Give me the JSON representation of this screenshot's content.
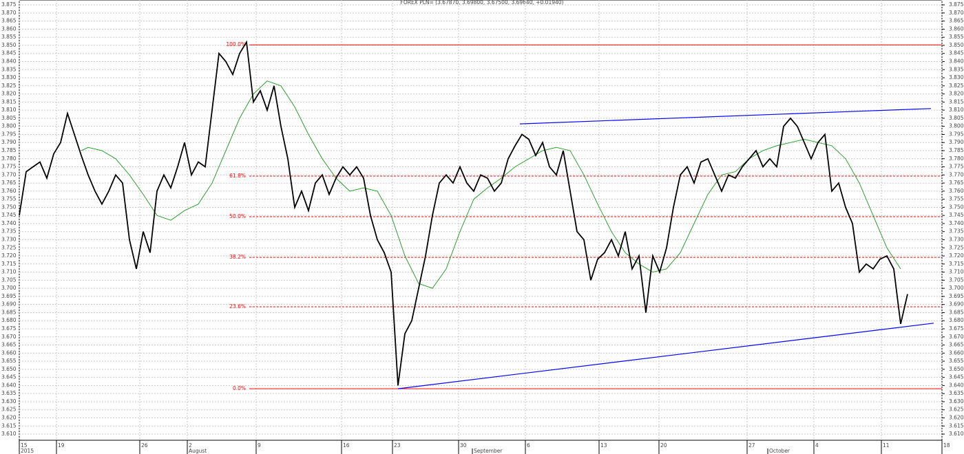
{
  "chart_data": {
    "type": "line",
    "title": "FOREX PLN= (3.67870, 3.69800, 3.67500, 3.69640, +0.01940)",
    "xlim": [
      0,
      134
    ],
    "xticks": [
      {
        "value": 0,
        "label": "15"
      },
      {
        "value": 5.4,
        "label": "19"
      },
      {
        "value": 17.5,
        "label": "26"
      },
      {
        "value": 24.4,
        "label": "2"
      },
      {
        "value": 34.4,
        "label": "9"
      },
      {
        "value": 46.8,
        "label": "16"
      },
      {
        "value": 54.2,
        "label": "23"
      },
      {
        "value": 63.8,
        "label": "30"
      },
      {
        "value": 73.5,
        "label": "6"
      },
      {
        "value": 84.2,
        "label": "13"
      },
      {
        "value": 92.9,
        "label": "20"
      },
      {
        "value": 105.7,
        "label": "27"
      },
      {
        "value": 115.4,
        "label": "4"
      },
      {
        "value": 125.2,
        "label": "11"
      },
      {
        "value": 134,
        "label": "18"
      }
    ],
    "month_ticks": [
      {
        "value": 0,
        "label": "2015"
      },
      {
        "value": 24.4,
        "label": "August"
      },
      {
        "value": 65.8,
        "label": "September"
      },
      {
        "value": 108.7,
        "label": "October"
      }
    ],
    "ylim": [
      3.6062,
      3.878
    ],
    "yticks": [
      {
        "value": 3.61,
        "label": "3.610"
      },
      {
        "value": 3.615,
        "label": "3.615"
      },
      {
        "value": 3.62,
        "label": "3.620"
      },
      {
        "value": 3.625,
        "label": "3.625"
      },
      {
        "value": 3.63,
        "label": "3.630"
      },
      {
        "value": 3.635,
        "label": "3.635"
      },
      {
        "value": 3.64,
        "label": "3.640"
      },
      {
        "value": 3.645,
        "label": "3.645"
      },
      {
        "value": 3.65,
        "label": "3.650"
      },
      {
        "value": 3.655,
        "label": "3.655"
      },
      {
        "value": 3.66,
        "label": "3.660"
      },
      {
        "value": 3.665,
        "label": "3.665"
      },
      {
        "value": 3.67,
        "label": "3.670"
      },
      {
        "value": 3.675,
        "label": "3.675"
      },
      {
        "value": 3.68,
        "label": "3.680"
      },
      {
        "value": 3.685,
        "label": "3.685"
      },
      {
        "value": 3.69,
        "label": "3.690"
      },
      {
        "value": 3.695,
        "label": "3.695"
      },
      {
        "value": 3.7,
        "label": "3.700"
      },
      {
        "value": 3.705,
        "label": "3.705"
      },
      {
        "value": 3.71,
        "label": "3.710"
      },
      {
        "value": 3.715,
        "label": "3.715"
      },
      {
        "value": 3.72,
        "label": "3.720"
      },
      {
        "value": 3.725,
        "label": "3.725"
      },
      {
        "value": 3.73,
        "label": "3.730"
      },
      {
        "value": 3.735,
        "label": "3.735"
      },
      {
        "value": 3.74,
        "label": "3.740"
      },
      {
        "value": 3.745,
        "label": "3.745"
      },
      {
        "value": 3.75,
        "label": "3.750"
      },
      {
        "value": 3.755,
        "label": "3.755"
      },
      {
        "value": 3.76,
        "label": "3.760"
      },
      {
        "value": 3.765,
        "label": "3.765"
      },
      {
        "value": 3.77,
        "label": "3.770"
      },
      {
        "value": 3.775,
        "label": "3.775"
      },
      {
        "value": 3.78,
        "label": "3.780"
      },
      {
        "value": 3.785,
        "label": "3.785"
      },
      {
        "value": 3.79,
        "label": "3.790"
      },
      {
        "value": 3.795,
        "label": "3.795"
      },
      {
        "value": 3.8,
        "label": "3.800"
      },
      {
        "value": 3.805,
        "label": "3.805"
      },
      {
        "value": 3.81,
        "label": "3.810"
      },
      {
        "value": 3.815,
        "label": "3.815"
      },
      {
        "value": 3.82,
        "label": "3.820"
      },
      {
        "value": 3.825,
        "label": "3.825"
      },
      {
        "value": 3.83,
        "label": "3.830"
      },
      {
        "value": 3.835,
        "label": "3.835"
      },
      {
        "value": 3.84,
        "label": "3.840"
      },
      {
        "value": 3.845,
        "label": "3.845"
      },
      {
        "value": 3.85,
        "label": "3.850"
      },
      {
        "value": 3.855,
        "label": "3.855"
      },
      {
        "value": 3.86,
        "label": "3.860"
      },
      {
        "value": 3.865,
        "label": "3.865"
      },
      {
        "value": 3.87,
        "label": "3.870"
      },
      {
        "value": 3.875,
        "label": "3.875"
      }
    ],
    "grid": true,
    "series": [
      {
        "name": "PLN=",
        "color": "#000000",
        "values": [
          3.745,
          3.772,
          3.775,
          3.778,
          3.768,
          3.783,
          3.79,
          3.808,
          3.795,
          3.782,
          3.77,
          3.76,
          3.752,
          3.76,
          3.77,
          3.765,
          3.73,
          3.712,
          3.735,
          3.722,
          3.76,
          3.77,
          3.762,
          3.775,
          3.79,
          3.77,
          3.778,
          3.775,
          3.81,
          3.845,
          3.84,
          3.832,
          3.845,
          3.852,
          3.815,
          3.822,
          3.81,
          3.825,
          3.8,
          3.78,
          3.75,
          3.76,
          3.748,
          3.765,
          3.77,
          3.758,
          3.768,
          3.775,
          3.77,
          3.775,
          3.768,
          3.745,
          3.73,
          3.722,
          3.71,
          3.64,
          3.672,
          3.68,
          3.7,
          3.72,
          3.745,
          3.765,
          3.77,
          3.765,
          3.775,
          3.765,
          3.76,
          3.77,
          3.768,
          3.76,
          3.765,
          3.78,
          3.788,
          3.795,
          3.792,
          3.782,
          3.79,
          3.775,
          3.77,
          3.785,
          3.76,
          3.735,
          3.73,
          3.705,
          3.718,
          3.722,
          3.73,
          3.72,
          3.735,
          3.712,
          3.72,
          3.685,
          3.72,
          3.71,
          3.725,
          3.75,
          3.77,
          3.775,
          3.765,
          3.778,
          3.78,
          3.77,
          3.76,
          3.77,
          3.768,
          3.775,
          3.78,
          3.785,
          3.775,
          3.78,
          3.775,
          3.8,
          3.805,
          3.8,
          3.79,
          3.78,
          3.79,
          3.795,
          3.76,
          3.765,
          3.75,
          3.74,
          3.71,
          3.715,
          3.712,
          3.718,
          3.72,
          3.712,
          3.678,
          3.6964
        ]
      },
      {
        "name": "MA",
        "color": "#2ca02c",
        "x": [
          9,
          10,
          12,
          14,
          16,
          18,
          20,
          22,
          24,
          26,
          28,
          30,
          32,
          34,
          36,
          38,
          40,
          42,
          44,
          46,
          48,
          50,
          52,
          54,
          56,
          58,
          60,
          62,
          64,
          66,
          68,
          70,
          72,
          74,
          76,
          78,
          80,
          82,
          84,
          86,
          88,
          90,
          92,
          94,
          96,
          98,
          100,
          102,
          104,
          106,
          108,
          110,
          112,
          114,
          116,
          118,
          120,
          122,
          124,
          126,
          128
        ],
        "values": [
          3.785,
          3.787,
          3.785,
          3.78,
          3.77,
          3.758,
          3.745,
          3.742,
          3.748,
          3.752,
          3.765,
          3.785,
          3.805,
          3.82,
          3.828,
          3.825,
          3.812,
          3.795,
          3.78,
          3.768,
          3.76,
          3.762,
          3.76,
          3.745,
          3.72,
          3.703,
          3.7,
          3.712,
          3.735,
          3.755,
          3.762,
          3.768,
          3.775,
          3.78,
          3.785,
          3.787,
          3.785,
          3.77,
          3.752,
          3.735,
          3.722,
          3.715,
          3.71,
          3.712,
          3.722,
          3.74,
          3.758,
          3.77,
          3.772,
          3.78,
          3.785,
          3.788,
          3.79,
          3.792,
          3.79,
          3.788,
          3.78,
          3.765,
          3.745,
          3.725,
          3.712
        ]
      }
    ],
    "fibonacci": {
      "color": "#ff0000",
      "levels": [
        {
          "label": "100.0%",
          "value": 3.8503
        },
        {
          "label": "61.8%",
          "value": 3.7693
        },
        {
          "label": "50.0%",
          "value": 3.7442
        },
        {
          "label": "38.2%",
          "value": 3.7191
        },
        {
          "label": "23.6%",
          "value": 3.6886
        },
        {
          "label": "0.0%",
          "value": 3.638
        }
      ]
    },
    "trendlines": {
      "color": "#0000ff",
      "lines": [
        {
          "x": [
            72.7,
            132.4
          ],
          "values": [
            3.8015,
            3.811
          ]
        },
        {
          "x": [
            55,
            132.8
          ],
          "values": [
            3.638,
            3.6785
          ]
        }
      ]
    }
  }
}
